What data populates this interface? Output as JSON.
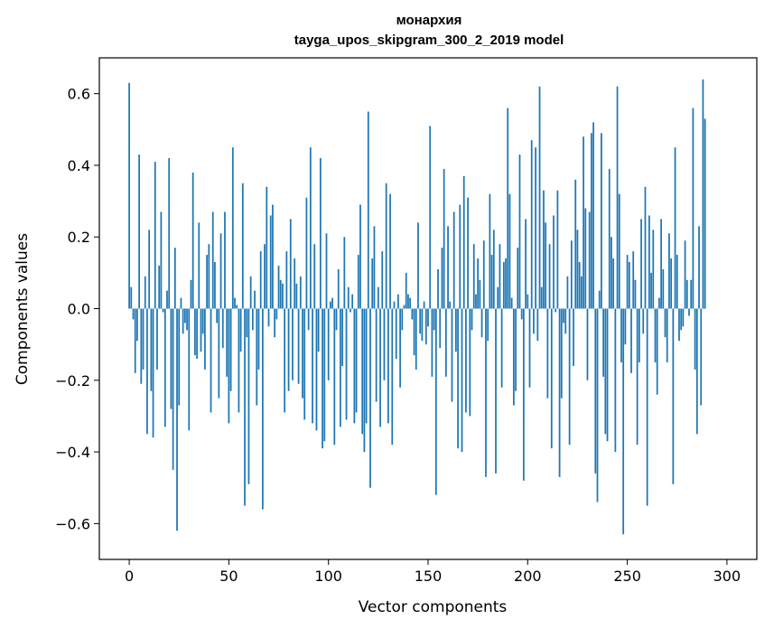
{
  "chart_data": {
    "type": "bar",
    "title": "монархия",
    "subtitle": "tayga_upos_skipgram_300_2_2019 model",
    "xlabel": "Vector components",
    "ylabel": "Components values",
    "xlim": [
      -15,
      315
    ],
    "ylim": [
      -0.7,
      0.7
    ],
    "x_ticks": [
      0,
      50,
      100,
      150,
      200,
      250,
      300
    ],
    "y_ticks": [
      -0.6,
      -0.4,
      -0.2,
      0.0,
      0.2,
      0.4,
      0.6
    ],
    "x_tick_labels": [
      "0",
      "50",
      "100",
      "150",
      "200",
      "250",
      "300"
    ],
    "y_tick_labels": [
      "−0.6",
      "−0.4",
      "−0.2",
      "0.0",
      "0.2",
      "0.4",
      "0.6"
    ],
    "bar_color": "#1f77b4",
    "grid": false,
    "values": [
      0.63,
      0.06,
      -0.03,
      -0.18,
      -0.09,
      0.43,
      -0.21,
      -0.17,
      0.09,
      -0.35,
      0.22,
      -0.23,
      -0.36,
      0.41,
      -0.17,
      0.12,
      0.27,
      -0.01,
      -0.33,
      0.05,
      0.42,
      -0.28,
      -0.45,
      0.17,
      -0.62,
      -0.27,
      0.03,
      -0.07,
      -0.04,
      -0.06,
      -0.34,
      0.08,
      0.38,
      -0.13,
      -0.14,
      0.24,
      -0.12,
      -0.07,
      -0.17,
      0.15,
      0.18,
      -0.29,
      0.27,
      0.13,
      -0.04,
      -0.25,
      0.21,
      -0.11,
      0.27,
      -0.19,
      -0.32,
      -0.23,
      0.45,
      0.03,
      0.01,
      -0.29,
      -0.12,
      0.35,
      -0.55,
      -0.08,
      -0.49,
      0.09,
      -0.06,
      0.05,
      -0.27,
      -0.17,
      0.16,
      -0.56,
      0.18,
      0.34,
      -0.05,
      0.26,
      0.29,
      -0.08,
      -0.03,
      0.12,
      0.08,
      0.07,
      -0.29,
      0.16,
      -0.23,
      0.25,
      -0.2,
      0.14,
      0.07,
      -0.21,
      0.09,
      -0.25,
      -0.31,
      0.31,
      -0.06,
      0.45,
      -0.32,
      0.18,
      -0.34,
      -0.12,
      0.42,
      -0.39,
      -0.37,
      0.21,
      -0.2,
      0.02,
      0.03,
      -0.38,
      -0.06,
      0.11,
      -0.33,
      -0.16,
      0.2,
      -0.31,
      0.06,
      -0.01,
      0.04,
      -0.32,
      -0.29,
      0.15,
      0.29,
      -0.35,
      -0.4,
      -0.32,
      0.55,
      -0.5,
      0.14,
      0.23,
      -0.26,
      0.06,
      -0.33,
      0.16,
      -0.2,
      0.35,
      -0.32,
      0.32,
      -0.38,
      0.02,
      -0.14,
      0.04,
      -0.22,
      -0.06,
      0.01,
      0.1,
      0.04,
      0.03,
      -0.03,
      -0.13,
      -0.17,
      0.24,
      -0.07,
      -0.09,
      0.02,
      -0.1,
      -0.05,
      0.51,
      -0.19,
      -0.06,
      -0.52,
      0.11,
      -0.11,
      0.17,
      0.39,
      -0.19,
      0.23,
      0.02,
      -0.26,
      0.27,
      -0.12,
      -0.39,
      0.29,
      -0.4,
      0.37,
      -0.29,
      0.31,
      -0.3,
      -0.06,
      0.18,
      0.04,
      0.14,
      0.08,
      -0.08,
      0.19,
      -0.47,
      -0.09,
      0.32,
      0.15,
      0.22,
      -0.46,
      0.06,
      0.18,
      -0.22,
      0.13,
      0.14,
      0.56,
      0.32,
      0.03,
      -0.27,
      -0.23,
      0.17,
      0.43,
      -0.03,
      -0.48,
      0.25,
      0.04,
      -0.22,
      0.47,
      -0.07,
      0.45,
      -0.09,
      0.62,
      0.06,
      0.33,
      0.24,
      -0.25,
      0.18,
      -0.39,
      0.26,
      -0.01,
      0.33,
      -0.47,
      -0.25,
      -0.04,
      -0.07,
      0.09,
      -0.38,
      0.19,
      -0.16,
      0.36,
      0.22,
      0.13,
      0.09,
      0.48,
      0.28,
      -0.2,
      0.27,
      0.49,
      0.52,
      -0.46,
      -0.54,
      0.05,
      0.49,
      -0.19,
      -0.35,
      -0.37,
      0.39,
      0.2,
      0.14,
      -0.4,
      0.62,
      0.32,
      -0.15,
      -0.63,
      -0.1,
      0.15,
      0.13,
      -0.18,
      0.16,
      0.08,
      -0.38,
      -0.15,
      0.25,
      -0.07,
      0.34,
      -0.55,
      0.26,
      0.1,
      0.22,
      -0.15,
      -0.24,
      0.03,
      0.25,
      0.11,
      -0.08,
      -0.15,
      0.21,
      0.14,
      -0.49,
      0.45,
      0.15,
      -0.09,
      -0.06,
      -0.05,
      0.19,
      0.08,
      -0.02,
      0.08,
      0.56,
      -0.17,
      -0.35,
      0.23,
      -0.27,
      0.64,
      0.53
    ]
  }
}
